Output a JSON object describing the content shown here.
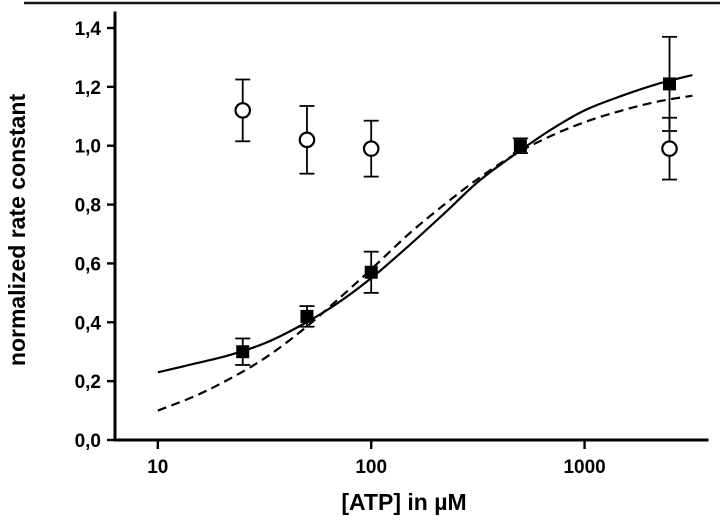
{
  "chart_data": {
    "type": "scatter",
    "title": "",
    "xlabel": "[ATP] in µM",
    "ylabel": "normalized rate constant",
    "axes": {
      "x": {
        "scale": "log",
        "min": 6.3,
        "max": 3550,
        "ticks": [
          {
            "value": 10,
            "label": "10"
          },
          {
            "value": 100,
            "label": "100"
          },
          {
            "value": 1000,
            "label": "1000"
          }
        ]
      },
      "y": {
        "scale": "linear",
        "min": 0,
        "max": 1.4,
        "ticks": [
          {
            "value": 0.0,
            "label": "0,0"
          },
          {
            "value": 0.2,
            "label": "0,2"
          },
          {
            "value": 0.4,
            "label": "0,4"
          },
          {
            "value": 0.6,
            "label": "0,6"
          },
          {
            "value": 0.8,
            "label": "0,8"
          },
          {
            "value": 1.0,
            "label": "1,0"
          },
          {
            "value": 1.2,
            "label": "1,2"
          },
          {
            "value": 1.4,
            "label": "1,4"
          }
        ]
      }
    },
    "series": [
      {
        "name": "filled-squares",
        "marker": "square",
        "x": [
          25,
          50,
          100,
          500,
          2500
        ],
        "y": [
          0.3,
          0.42,
          0.57,
          1.0,
          1.21
        ],
        "yerr": [
          0.045,
          0.035,
          0.07,
          0.025,
          0.16
        ]
      },
      {
        "name": "open-circles",
        "marker": "circle",
        "x": [
          25,
          50,
          100,
          2500
        ],
        "y": [
          1.12,
          1.02,
          0.99,
          0.99
        ],
        "yerr": [
          0.105,
          0.115,
          0.095,
          0.105
        ]
      }
    ],
    "curves": [
      {
        "name": "solid-curve",
        "style": "solid",
        "x": [
          10,
          15,
          22,
          32,
          47,
          68,
          100,
          150,
          220,
          320,
          470,
          680,
          1000,
          1500,
          2200,
          3200
        ],
        "y": [
          0.23,
          0.26,
          0.29,
          0.33,
          0.39,
          0.46,
          0.55,
          0.66,
          0.77,
          0.88,
          0.97,
          1.05,
          1.12,
          1.17,
          1.21,
          1.24
        ]
      },
      {
        "name": "dashed-curve",
        "style": "dashed",
        "x": [
          10,
          15,
          22,
          32,
          47,
          68,
          100,
          150,
          220,
          320,
          470,
          680,
          1000,
          1500,
          2200,
          3200
        ],
        "y": [
          0.1,
          0.15,
          0.21,
          0.28,
          0.37,
          0.47,
          0.58,
          0.7,
          0.8,
          0.89,
          0.97,
          1.03,
          1.08,
          1.12,
          1.15,
          1.17
        ]
      }
    ],
    "legend": "none",
    "grid": false
  }
}
